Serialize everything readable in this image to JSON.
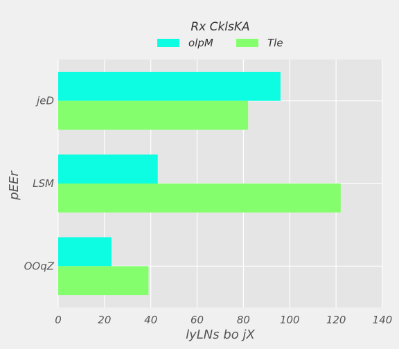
{
  "chart_data": {
    "type": "bar",
    "orientation": "horizontal",
    "title": "",
    "categories": [
      "jeD",
      "LSM",
      "OOqZ"
    ],
    "series": [
      {
        "name": "olpM",
        "values": [
          96,
          43,
          23
        ],
        "color": "#0cfde1"
      },
      {
        "name": "Tle",
        "values": [
          82,
          122,
          39
        ],
        "color": "#85fe6e"
      }
    ],
    "xlabel": "lyLNs  bo jX",
    "ylabel": "pEEr",
    "xlim": [
      0,
      140
    ],
    "xticks": [
      "0",
      "20",
      "40",
      "60",
      "80",
      "100",
      "120",
      "140"
    ],
    "grid": true,
    "legend": {
      "title": "Rx CklsKA",
      "placement": "top-center"
    },
    "colors": {
      "plot_bg": "#e5e5e5",
      "page_bg": "#f0f0f0",
      "grid": "#ffffff"
    }
  }
}
